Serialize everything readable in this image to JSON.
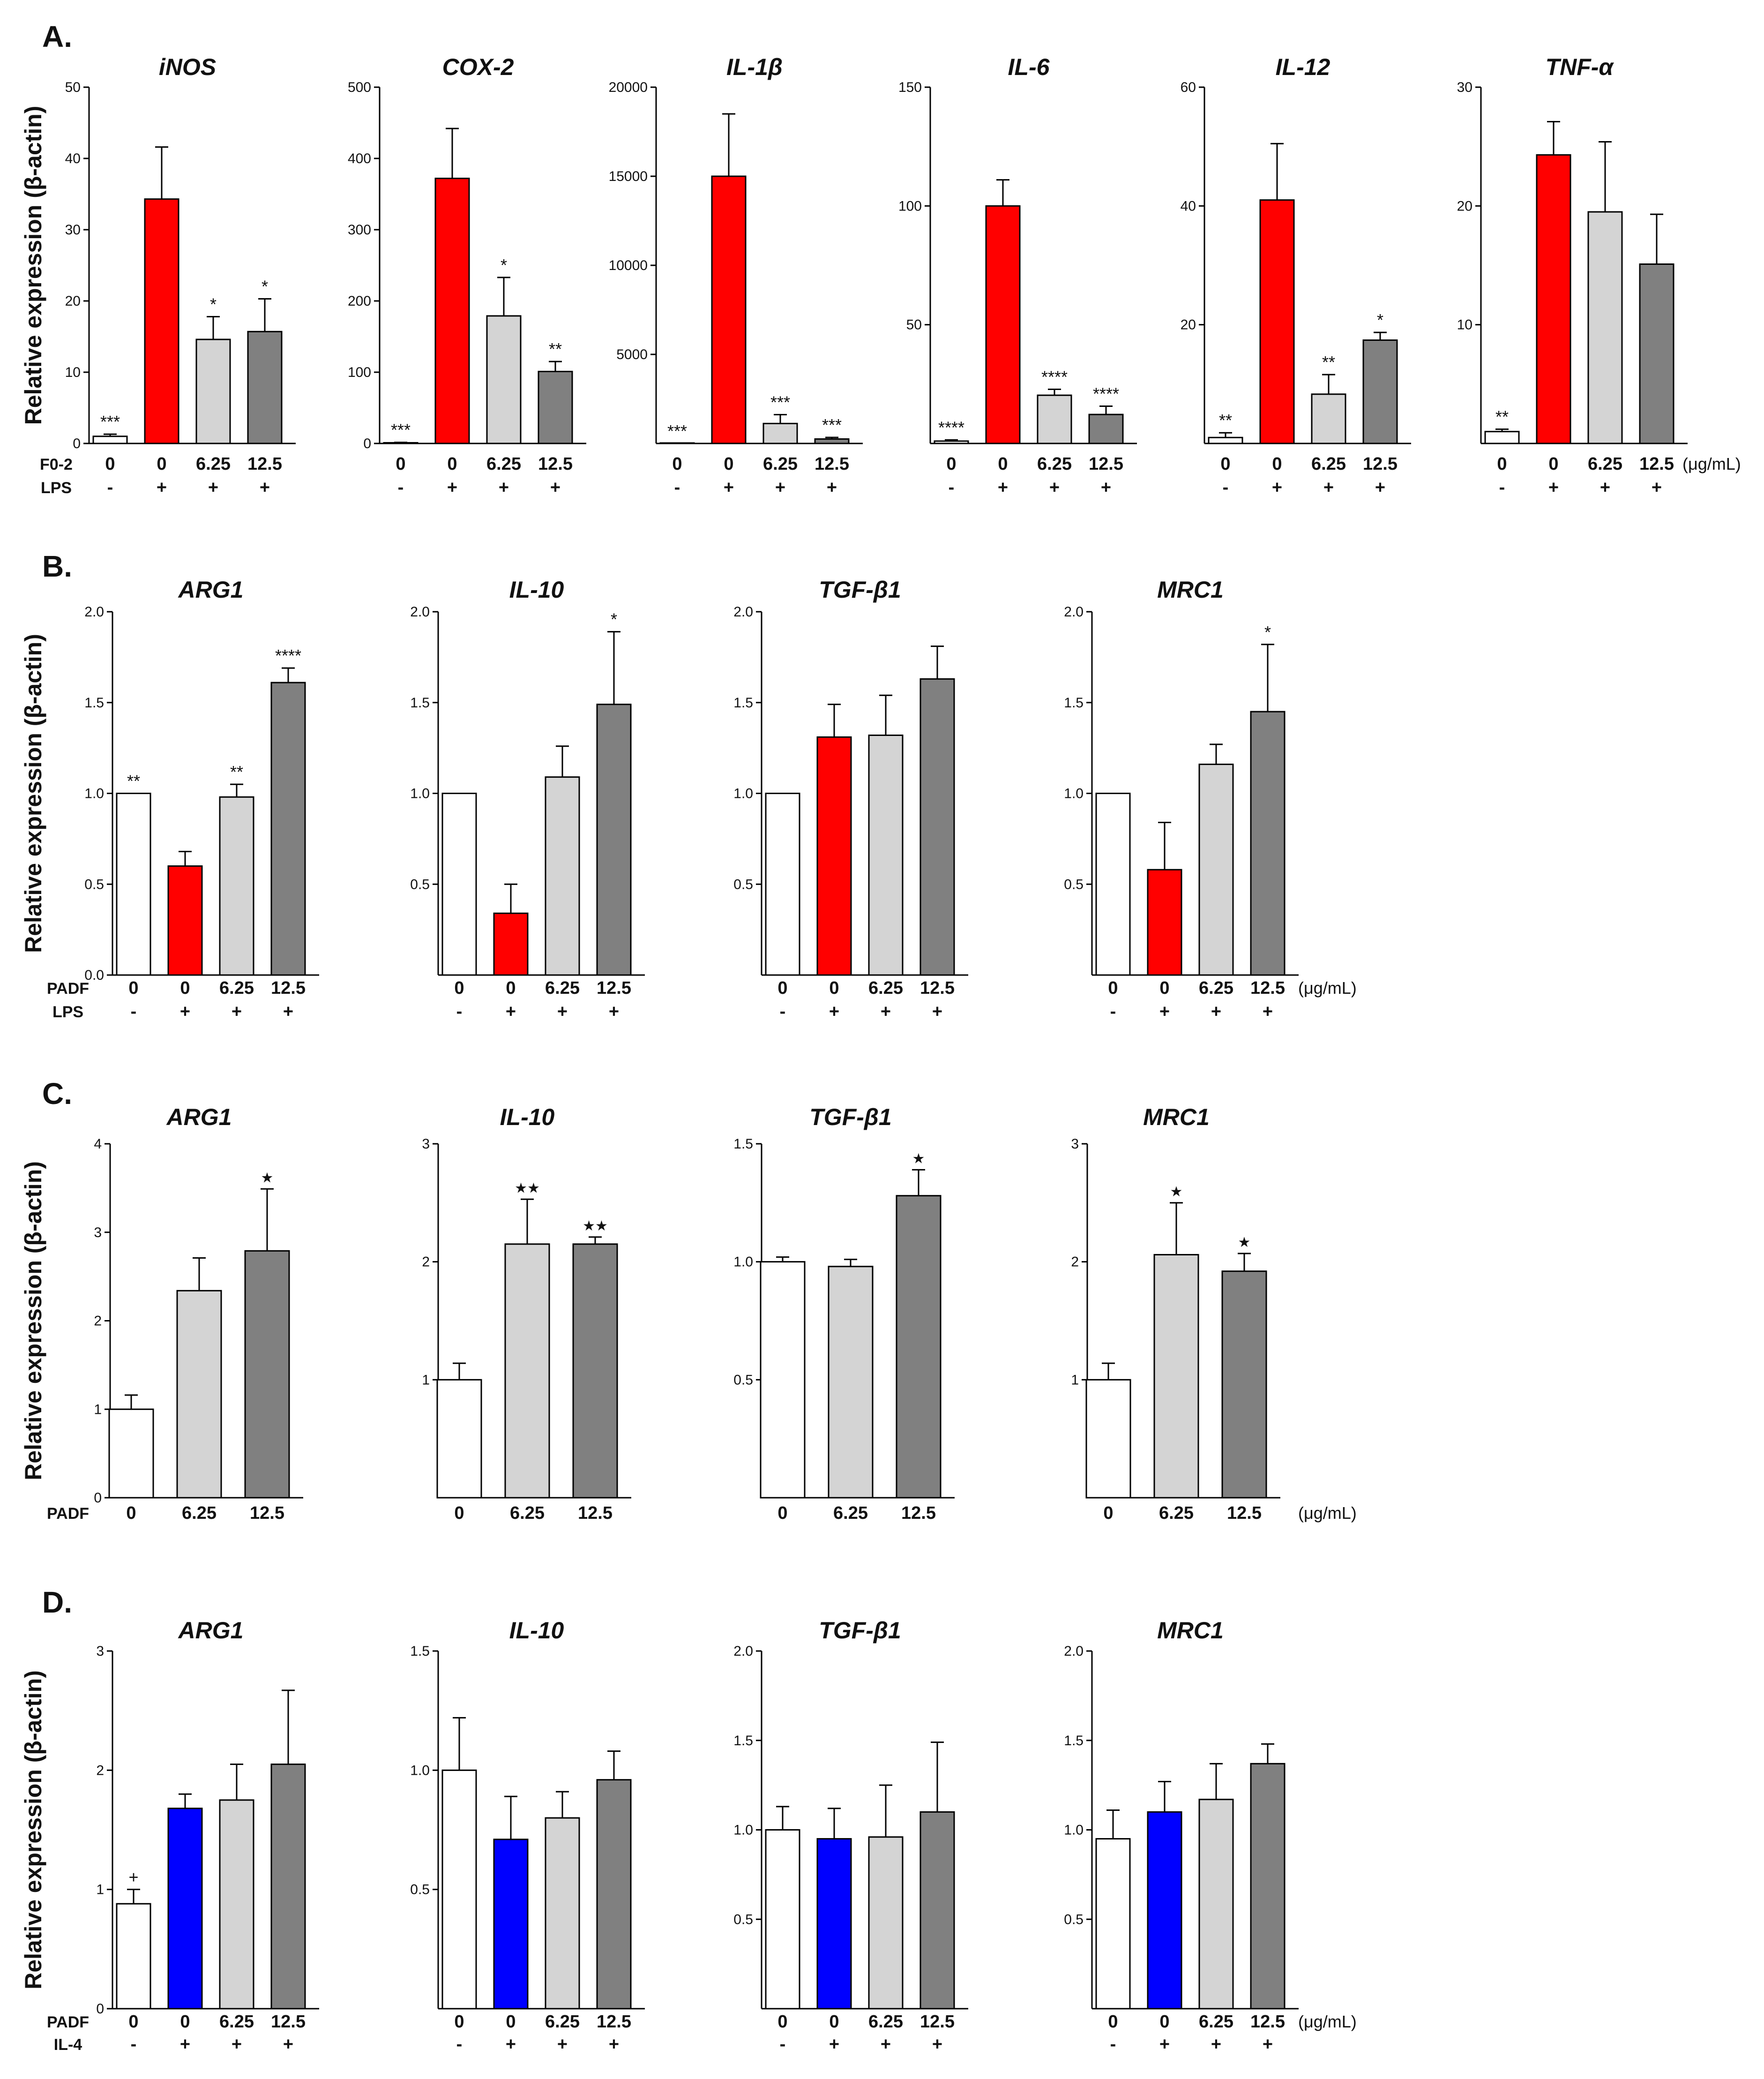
{
  "colors": {
    "control": "#ffffff",
    "lps": "#ff0000",
    "il4": "#0000ff",
    "low": "#d4d4d4",
    "high": "#808080",
    "outline": "#000000"
  },
  "panels": [
    {
      "label": "A.",
      "ylabel": "Relative expression (β-actin)",
      "row_names": [
        "F0-2",
        "LPS"
      ],
      "unit": "(μg/mL)",
      "conditions": [
        {
          "dose": "0",
          "stim": "-",
          "color": "#ffffff"
        },
        {
          "dose": "0",
          "stim": "+",
          "color": "#ff0000"
        },
        {
          "dose": "6.25",
          "stim": "+",
          "color": "#d4d4d4"
        },
        {
          "dose": "12.5",
          "stim": "+",
          "color": "#808080"
        }
      ]
    },
    {
      "label": "B.",
      "ylabel": "Relative expression (β-actin)",
      "row_names": [
        "PADF",
        "LPS"
      ],
      "unit": "(μg/mL)",
      "conditions": [
        {
          "dose": "0",
          "stim": "-",
          "color": "#ffffff"
        },
        {
          "dose": "0",
          "stim": "+",
          "color": "#ff0000"
        },
        {
          "dose": "6.25",
          "stim": "+",
          "color": "#d4d4d4"
        },
        {
          "dose": "12.5",
          "stim": "+",
          "color": "#808080"
        }
      ]
    },
    {
      "label": "C.",
      "ylabel": "Relative expression (β-actin)",
      "row_names": [
        "PADF"
      ],
      "unit": "(μg/mL)",
      "conditions": [
        {
          "dose": "0",
          "color": "#ffffff"
        },
        {
          "dose": "6.25",
          "color": "#d4d4d4"
        },
        {
          "dose": "12.5",
          "color": "#808080"
        }
      ]
    },
    {
      "label": "D.",
      "ylabel": "Relative expression (β-actin)",
      "row_names": [
        "PADF",
        "IL-4"
      ],
      "unit": "(μg/mL)",
      "conditions": [
        {
          "dose": "0",
          "stim": "-",
          "color": "#ffffff"
        },
        {
          "dose": "0",
          "stim": "+",
          "color": "#0000ff"
        },
        {
          "dose": "6.25",
          "stim": "+",
          "color": "#d4d4d4"
        },
        {
          "dose": "12.5",
          "stim": "+",
          "color": "#808080"
        }
      ]
    }
  ],
  "chart_data": [
    {
      "panel": 0,
      "type": "bar",
      "title": "iNOS",
      "ylim": [
        0,
        50
      ],
      "yticks": [
        "0",
        "10",
        "20",
        "30",
        "40",
        "50"
      ],
      "values": [
        1,
        34.3,
        14.6,
        15.7
      ],
      "errors": [
        0.3,
        7.3,
        3.2,
        4.6
      ],
      "sig": [
        "***",
        "",
        "*",
        "*"
      ]
    },
    {
      "panel": 0,
      "type": "bar",
      "title": "COX-2",
      "ylim": [
        0,
        500
      ],
      "yticks": [
        "0",
        "100",
        "200",
        "300",
        "400",
        "500"
      ],
      "values": [
        1,
        372,
        179,
        101
      ],
      "errors": [
        0.5,
        70,
        54,
        14
      ],
      "sig": [
        "***",
        "",
        "*",
        "**"
      ]
    },
    {
      "panel": 0,
      "type": "bar",
      "title": "IL-1β",
      "ylim": [
        0,
        20000
      ],
      "yticks": [
        "5000",
        "10000",
        "15000",
        "20000"
      ],
      "values": [
        1,
        15000,
        1120,
        250
      ],
      "errors": [
        1,
        3500,
        500,
        90
      ],
      "sig": [
        "***",
        "",
        "***",
        "***"
      ]
    },
    {
      "panel": 0,
      "type": "bar",
      "title": "IL-6",
      "ylim": [
        0,
        150
      ],
      "yticks": [
        "50",
        "100",
        "150"
      ],
      "values": [
        1,
        100,
        20.3,
        12.2
      ],
      "errors": [
        0.5,
        11,
        2.5,
        3.5
      ],
      "sig": [
        "****",
        "",
        "****",
        "****"
      ]
    },
    {
      "panel": 0,
      "type": "bar",
      "title": "IL-12",
      "ylim": [
        0,
        60
      ],
      "yticks": [
        "20",
        "40",
        "60"
      ],
      "values": [
        1,
        41,
        8.3,
        17.4
      ],
      "errors": [
        0.8,
        9.5,
        3.3,
        1.3
      ],
      "sig": [
        "**",
        "",
        "**",
        "*"
      ]
    },
    {
      "panel": 0,
      "type": "bar",
      "title": "TNF-α",
      "ylim": [
        0,
        30
      ],
      "yticks": [
        "10",
        "20",
        "30"
      ],
      "values": [
        1,
        24.3,
        19.5,
        15.1
      ],
      "errors": [
        0.2,
        2.8,
        5.9,
        4.2
      ],
      "sig": [
        "**",
        "",
        "",
        ""
      ]
    },
    {
      "panel": 1,
      "type": "bar",
      "title": "ARG1",
      "ylim": [
        0,
        2
      ],
      "yticks": [
        "0.0",
        "0.5",
        "1.0",
        "1.5",
        "2.0"
      ],
      "values": [
        1.0,
        0.6,
        0.98,
        1.61
      ],
      "errors": [
        0,
        0.08,
        0.07,
        0.08
      ],
      "sig": [
        "**",
        "",
        "**",
        "****"
      ]
    },
    {
      "panel": 1,
      "type": "bar",
      "title": "IL-10",
      "ylim": [
        0,
        2
      ],
      "yticks": [
        "0.5",
        "1.0",
        "1.5",
        "2.0"
      ],
      "values": [
        1.0,
        0.34,
        1.09,
        1.49
      ],
      "errors": [
        0,
        0.16,
        0.17,
        0.4
      ],
      "sig": [
        "",
        "",
        "",
        "*"
      ]
    },
    {
      "panel": 1,
      "type": "bar",
      "title": "TGF-β1",
      "ylim": [
        0,
        2
      ],
      "yticks": [
        "0.5",
        "1.0",
        "1.5",
        "2.0"
      ],
      "values": [
        1.0,
        1.31,
        1.32,
        1.63
      ],
      "errors": [
        0,
        0.18,
        0.22,
        0.18
      ],
      "sig": [
        "",
        "",
        "",
        ""
      ]
    },
    {
      "panel": 1,
      "type": "bar",
      "title": "MRC1",
      "ylim": [
        0,
        2
      ],
      "yticks": [
        "0.5",
        "1.0",
        "1.5",
        "2.0"
      ],
      "values": [
        1.0,
        0.58,
        1.16,
        1.45
      ],
      "errors": [
        0,
        0.26,
        0.11,
        0.37
      ],
      "sig": [
        "",
        "",
        "",
        "*"
      ]
    },
    {
      "panel": 2,
      "type": "bar",
      "title": "ARG1",
      "ylim": [
        0,
        4
      ],
      "yticks": [
        "0",
        "1",
        "2",
        "3",
        "4"
      ],
      "values": [
        1.0,
        2.34,
        2.79
      ],
      "errors": [
        0.16,
        0.37,
        0.7
      ],
      "sig": [
        "",
        "",
        "★"
      ]
    },
    {
      "panel": 2,
      "type": "bar",
      "title": "IL-10",
      "ylim": [
        0,
        3
      ],
      "yticks": [
        "1",
        "2",
        "3"
      ],
      "values": [
        1.0,
        2.15,
        2.15
      ],
      "errors": [
        0.14,
        0.38,
        0.06
      ],
      "sig": [
        "",
        "★★",
        "★★"
      ]
    },
    {
      "panel": 2,
      "type": "bar",
      "title": "TGF-β1",
      "ylim": [
        0,
        1.5
      ],
      "yticks": [
        "0.5",
        "1.0",
        "1.5"
      ],
      "values": [
        1.0,
        0.98,
        1.28
      ],
      "errors": [
        0.02,
        0.03,
        0.11
      ],
      "sig": [
        "",
        "",
        "★"
      ]
    },
    {
      "panel": 2,
      "type": "bar",
      "title": "MRC1",
      "ylim": [
        0,
        3
      ],
      "yticks": [
        "1",
        "2",
        "3"
      ],
      "values": [
        1.0,
        2.06,
        1.92
      ],
      "errors": [
        0.14,
        0.44,
        0.15
      ],
      "sig": [
        "",
        "★",
        "★"
      ]
    },
    {
      "panel": 3,
      "type": "bar",
      "title": "ARG1",
      "ylim": [
        0,
        3
      ],
      "yticks": [
        "0",
        "1",
        "2",
        "3"
      ],
      "values": [
        0.88,
        1.68,
        1.75,
        2.05
      ],
      "errors": [
        0.12,
        0.12,
        0.3,
        0.62
      ],
      "sig": [
        "+",
        "",
        "",
        ""
      ]
    },
    {
      "panel": 3,
      "type": "bar",
      "title": "IL-10",
      "ylim": [
        0,
        1.5
      ],
      "yticks": [
        "0.5",
        "1.0",
        "1.5"
      ],
      "values": [
        1.0,
        0.71,
        0.8,
        0.96
      ],
      "errors": [
        0.22,
        0.18,
        0.11,
        0.12
      ],
      "sig": [
        "",
        "",
        "",
        ""
      ]
    },
    {
      "panel": 3,
      "type": "bar",
      "title": "TGF-β1",
      "ylim": [
        0,
        2
      ],
      "yticks": [
        "0.5",
        "1.0",
        "1.5",
        "2.0"
      ],
      "values": [
        1.0,
        0.95,
        0.96,
        1.1
      ],
      "errors": [
        0.13,
        0.17,
        0.29,
        0.39
      ],
      "sig": [
        "",
        "",
        "",
        ""
      ]
    },
    {
      "panel": 3,
      "type": "bar",
      "title": "MRC1",
      "ylim": [
        0,
        2
      ],
      "yticks": [
        "0.5",
        "1.0",
        "1.5",
        "2.0"
      ],
      "values": [
        0.95,
        1.1,
        1.17,
        1.37
      ],
      "errors": [
        0.16,
        0.17,
        0.2,
        0.11
      ],
      "sig": [
        "",
        "",
        "",
        ""
      ]
    }
  ]
}
